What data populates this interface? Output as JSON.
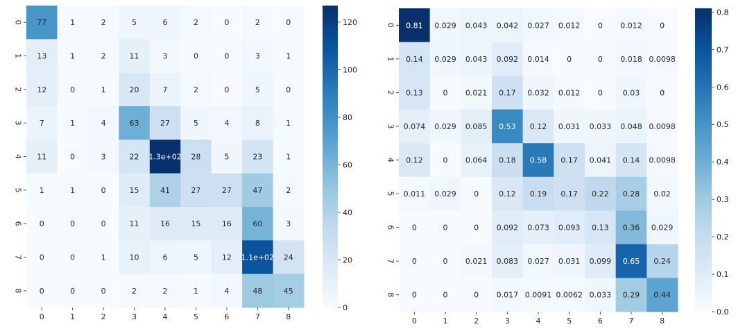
{
  "chart_data": [
    {
      "type": "heatmap",
      "title": "",
      "xlabel": "",
      "ylabel": "",
      "x_tick_labels": [
        "0",
        "1",
        "2",
        "3",
        "4",
        "5",
        "6",
        "7",
        "8"
      ],
      "y_tick_labels": [
        "0",
        "1",
        "2",
        "3",
        "4",
        "5",
        "6",
        "7",
        "8"
      ],
      "values": [
        [
          77,
          1,
          2,
          5,
          6,
          2,
          0,
          2,
          0
        ],
        [
          13,
          1,
          2,
          11,
          3,
          0,
          0,
          3,
          1
        ],
        [
          12,
          0,
          1,
          20,
          7,
          2,
          0,
          5,
          0
        ],
        [
          7,
          1,
          4,
          63,
          27,
          5,
          4,
          8,
          1
        ],
        [
          11,
          0,
          3,
          22,
          130,
          28,
          5,
          23,
          1
        ],
        [
          1,
          1,
          0,
          15,
          41,
          27,
          27,
          47,
          2
        ],
        [
          0,
          0,
          0,
          11,
          16,
          15,
          16,
          60,
          3
        ],
        [
          0,
          0,
          1,
          10,
          6,
          5,
          12,
          110,
          24
        ],
        [
          0,
          0,
          0,
          2,
          2,
          1,
          4,
          48,
          45
        ]
      ],
      "cell_labels": [
        [
          "77",
          "1",
          "2",
          "5",
          "6",
          "2",
          "0",
          "2",
          "0"
        ],
        [
          "13",
          "1",
          "2",
          "11",
          "3",
          "0",
          "0",
          "3",
          "1"
        ],
        [
          "12",
          "0",
          "1",
          "20",
          "7",
          "2",
          "0",
          "5",
          "0"
        ],
        [
          "7",
          "1",
          "4",
          "63",
          "27",
          "5",
          "4",
          "8",
          "1"
        ],
        [
          "11",
          "0",
          "3",
          "22",
          "1.3e+02",
          "28",
          "5",
          "23",
          "1"
        ],
        [
          "1",
          "1",
          "0",
          "15",
          "41",
          "27",
          "27",
          "47",
          "2"
        ],
        [
          "0",
          "0",
          "0",
          "11",
          "16",
          "15",
          "16",
          "60",
          "3"
        ],
        [
          "0",
          "0",
          "1",
          "10",
          "6",
          "5",
          "12",
          "1.1e+02",
          "24"
        ],
        [
          "0",
          "0",
          "0",
          "2",
          "2",
          "1",
          "4",
          "48",
          "45"
        ]
      ],
      "colorbar": {
        "colormap": "Blues",
        "vmin": 0,
        "vmax": 127,
        "ticks": [
          0,
          20,
          40,
          60,
          80,
          100,
          120
        ],
        "tick_labels": [
          "0",
          "20",
          "40",
          "60",
          "80",
          "100",
          "120"
        ]
      }
    },
    {
      "type": "heatmap",
      "title": "",
      "xlabel": "",
      "ylabel": "",
      "x_tick_labels": [
        "0",
        "1",
        "2",
        "3",
        "4",
        "5",
        "6",
        "7",
        "8"
      ],
      "y_tick_labels": [
        "0",
        "1",
        "2",
        "3",
        "4",
        "5",
        "6",
        "7",
        "8"
      ],
      "values": [
        [
          0.81,
          0.029,
          0.043,
          0.042,
          0.027,
          0.012,
          0,
          0.012,
          0
        ],
        [
          0.14,
          0.029,
          0.043,
          0.092,
          0.014,
          0,
          0,
          0.018,
          0.0098
        ],
        [
          0.13,
          0,
          0.021,
          0.17,
          0.032,
          0.012,
          0,
          0.03,
          0
        ],
        [
          0.074,
          0.029,
          0.085,
          0.53,
          0.12,
          0.031,
          0.033,
          0.048,
          0.0098
        ],
        [
          0.12,
          0,
          0.064,
          0.18,
          0.58,
          0.17,
          0.041,
          0.14,
          0.0098
        ],
        [
          0.011,
          0.029,
          0,
          0.12,
          0.19,
          0.17,
          0.22,
          0.28,
          0.02
        ],
        [
          0,
          0,
          0,
          0.092,
          0.073,
          0.093,
          0.13,
          0.36,
          0.029
        ],
        [
          0,
          0,
          0.021,
          0.083,
          0.027,
          0.031,
          0.099,
          0.65,
          0.24
        ],
        [
          0,
          0,
          0,
          0.017,
          0.0091,
          0.0062,
          0.033,
          0.29,
          0.44
        ]
      ],
      "cell_labels": [
        [
          "0.81",
          "0.029",
          "0.043",
          "0.042",
          "0.027",
          "0.012",
          "0",
          "0.012",
          "0"
        ],
        [
          "0.14",
          "0.029",
          "0.043",
          "0.092",
          "0.014",
          "0",
          "0",
          "0.018",
          "0.0098"
        ],
        [
          "0.13",
          "0",
          "0.021",
          "0.17",
          "0.032",
          "0.012",
          "0",
          "0.03",
          "0"
        ],
        [
          "0.074",
          "0.029",
          "0.085",
          "0.53",
          "0.12",
          "0.031",
          "0.033",
          "0.048",
          "0.0098"
        ],
        [
          "0.12",
          "0",
          "0.064",
          "0.18",
          "0.58",
          "0.17",
          "0.041",
          "0.14",
          "0.0098"
        ],
        [
          "0.011",
          "0.029",
          "0",
          "0.12",
          "0.19",
          "0.17",
          "0.22",
          "0.28",
          "0.02"
        ],
        [
          "0",
          "0",
          "0",
          "0.092",
          "0.073",
          "0.093",
          "0.13",
          "0.36",
          "0.029"
        ],
        [
          "0",
          "0",
          "0.021",
          "0.083",
          "0.027",
          "0.031",
          "0.099",
          "0.65",
          "0.24"
        ],
        [
          "0",
          "0",
          "0",
          "0.017",
          "0.0091",
          "0.0062",
          "0.033",
          "0.29",
          "0.44"
        ]
      ],
      "colorbar": {
        "colormap": "Blues",
        "vmin": 0,
        "vmax": 0.81,
        "ticks": [
          0.0,
          0.1,
          0.2,
          0.3,
          0.4,
          0.5,
          0.6,
          0.7,
          0.8
        ],
        "tick_labels": [
          "0.0",
          "0.1",
          "0.2",
          "0.3",
          "0.4",
          "0.5",
          "0.6",
          "0.7",
          "0.8"
        ]
      }
    }
  ]
}
